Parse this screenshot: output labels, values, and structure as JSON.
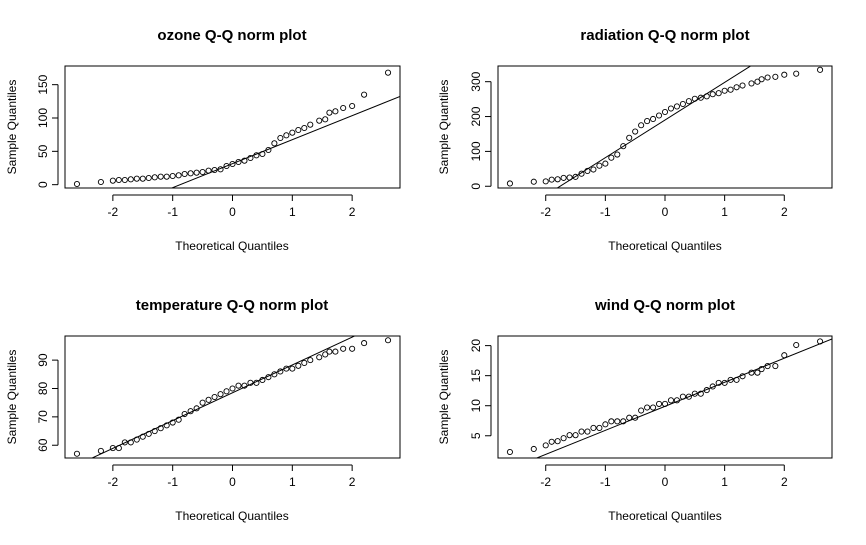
{
  "chart_data": [
    {
      "type": "scatter",
      "title": "ozone Q-Q norm plot",
      "xlabel": "Theoretical Quantiles",
      "ylabel": "Sample Quantiles",
      "xlim": [
        -2.8,
        2.8
      ],
      "ylim": [
        -5,
        178
      ],
      "xticks": [
        -2,
        -1,
        0,
        1,
        2
      ],
      "yticks": [
        0,
        50,
        100,
        150
      ],
      "line": {
        "intercept": 31.5,
        "slope": 36.0
      },
      "quantiles": [
        [
          -2.6,
          1
        ],
        [
          -2.2,
          4
        ],
        [
          -2.0,
          6
        ],
        [
          -1.9,
          7
        ],
        [
          -1.8,
          7
        ],
        [
          -1.7,
          8
        ],
        [
          -1.6,
          9
        ],
        [
          -1.5,
          9
        ],
        [
          -1.4,
          10
        ],
        [
          -1.3,
          11
        ],
        [
          -1.2,
          12
        ],
        [
          -1.1,
          12
        ],
        [
          -1.0,
          13
        ],
        [
          -0.9,
          14
        ],
        [
          -0.8,
          16
        ],
        [
          -0.7,
          17
        ],
        [
          -0.6,
          18
        ],
        [
          -0.5,
          19
        ],
        [
          -0.4,
          21
        ],
        [
          -0.3,
          22
        ],
        [
          -0.2,
          23
        ],
        [
          -0.1,
          28
        ],
        [
          0.0,
          31
        ],
        [
          0.1,
          34
        ],
        [
          0.2,
          36
        ],
        [
          0.3,
          40
        ],
        [
          0.4,
          44
        ],
        [
          0.5,
          46
        ],
        [
          0.6,
          52
        ],
        [
          0.7,
          62
        ],
        [
          0.8,
          70
        ],
        [
          0.9,
          74
        ],
        [
          1.0,
          78
        ],
        [
          1.1,
          82
        ],
        [
          1.2,
          85
        ],
        [
          1.3,
          90
        ],
        [
          1.45,
          96
        ],
        [
          1.55,
          98
        ],
        [
          1.62,
          108
        ],
        [
          1.72,
          110
        ],
        [
          1.85,
          115
        ],
        [
          2.0,
          118
        ],
        [
          2.2,
          135
        ],
        [
          2.6,
          168
        ]
      ]
    },
    {
      "type": "scatter",
      "title": "radiation Q-Q norm plot",
      "xlabel": "Theoretical Quantiles",
      "ylabel": "Sample Quantiles",
      "xlim": [
        -2.8,
        2.8
      ],
      "ylim": [
        -5,
        345
      ],
      "xticks": [
        -2,
        -1,
        0,
        1,
        2
      ],
      "yticks": [
        0,
        100,
        200,
        300
      ],
      "line": {
        "intercept": 190,
        "slope": 108
      },
      "quantiles": [
        [
          -2.6,
          8
        ],
        [
          -2.2,
          13
        ],
        [
          -2.0,
          14
        ],
        [
          -1.9,
          19
        ],
        [
          -1.8,
          20
        ],
        [
          -1.7,
          24
        ],
        [
          -1.6,
          25
        ],
        [
          -1.5,
          27
        ],
        [
          -1.4,
          36
        ],
        [
          -1.3,
          44
        ],
        [
          -1.2,
          48
        ],
        [
          -1.1,
          59
        ],
        [
          -1.0,
          65
        ],
        [
          -0.9,
          82
        ],
        [
          -0.8,
          91
        ],
        [
          -0.7,
          115
        ],
        [
          -0.6,
          139
        ],
        [
          -0.5,
          157
        ],
        [
          -0.4,
          175
        ],
        [
          -0.3,
          187
        ],
        [
          -0.2,
          193
        ],
        [
          -0.1,
          203
        ],
        [
          0.0,
          213
        ],
        [
          0.1,
          223
        ],
        [
          0.2,
          229
        ],
        [
          0.3,
          236
        ],
        [
          0.4,
          244
        ],
        [
          0.5,
          251
        ],
        [
          0.6,
          254
        ],
        [
          0.7,
          258
        ],
        [
          0.8,
          264
        ],
        [
          0.9,
          267
        ],
        [
          1.0,
          274
        ],
        [
          1.1,
          277
        ],
        [
          1.2,
          284
        ],
        [
          1.3,
          289
        ],
        [
          1.45,
          295
        ],
        [
          1.55,
          300
        ],
        [
          1.62,
          307
        ],
        [
          1.72,
          312
        ],
        [
          1.85,
          314
        ],
        [
          2.0,
          320
        ],
        [
          2.2,
          323
        ],
        [
          2.6,
          334
        ]
      ]
    },
    {
      "type": "scatter",
      "title": "temperature Q-Q norm plot",
      "xlabel": "Theoretical Quantiles",
      "ylabel": "Sample Quantiles",
      "xlim": [
        -2.8,
        2.8
      ],
      "ylim": [
        55.5,
        98.5
      ],
      "xticks": [
        -2,
        -1,
        0,
        1,
        2
      ],
      "yticks": [
        60,
        70,
        80,
        90
      ],
      "line": {
        "intercept": 78.5,
        "slope": 9.8
      },
      "quantiles": [
        [
          -2.6,
          57
        ],
        [
          -2.2,
          58
        ],
        [
          -2.0,
          59
        ],
        [
          -1.9,
          59
        ],
        [
          -1.8,
          61
        ],
        [
          -1.7,
          61
        ],
        [
          -1.6,
          62
        ],
        [
          -1.5,
          63
        ],
        [
          -1.4,
          64
        ],
        [
          -1.3,
          65
        ],
        [
          -1.2,
          66
        ],
        [
          -1.1,
          67
        ],
        [
          -1.0,
          68
        ],
        [
          -0.9,
          69
        ],
        [
          -0.8,
          71
        ],
        [
          -0.7,
          72
        ],
        [
          -0.6,
          73
        ],
        [
          -0.5,
          75
        ],
        [
          -0.4,
          76
        ],
        [
          -0.3,
          77
        ],
        [
          -0.2,
          78
        ],
        [
          -0.1,
          79
        ],
        [
          0.0,
          80
        ],
        [
          0.1,
          81
        ],
        [
          0.2,
          81
        ],
        [
          0.3,
          82
        ],
        [
          0.4,
          82
        ],
        [
          0.5,
          83
        ],
        [
          0.6,
          84
        ],
        [
          0.7,
          85
        ],
        [
          0.8,
          86
        ],
        [
          0.9,
          87
        ],
        [
          1.0,
          87
        ],
        [
          1.1,
          88
        ],
        [
          1.2,
          89
        ],
        [
          1.3,
          90
        ],
        [
          1.45,
          91
        ],
        [
          1.55,
          92
        ],
        [
          1.62,
          93
        ],
        [
          1.72,
          93
        ],
        [
          1.85,
          94
        ],
        [
          2.0,
          94
        ],
        [
          2.2,
          96
        ],
        [
          2.6,
          97
        ]
      ]
    },
    {
      "type": "scatter",
      "title": "wind Q-Q norm plot",
      "xlabel": "Theoretical Quantiles",
      "ylabel": "Sample Quantiles",
      "xlim": [
        -2.8,
        2.8
      ],
      "ylim": [
        1.3,
        21.6
      ],
      "xticks": [
        -2,
        -1,
        0,
        1,
        2
      ],
      "yticks": [
        5,
        10,
        15,
        20
      ],
      "line": {
        "intercept": 9.9,
        "slope": 4.0
      },
      "quantiles": [
        [
          -2.6,
          2.3
        ],
        [
          -2.2,
          2.8
        ],
        [
          -2.0,
          3.4
        ],
        [
          -1.9,
          4.0
        ],
        [
          -1.8,
          4.1
        ],
        [
          -1.7,
          4.6
        ],
        [
          -1.6,
          5.1
        ],
        [
          -1.5,
          5.1
        ],
        [
          -1.4,
          5.7
        ],
        [
          -1.3,
          5.7
        ],
        [
          -1.2,
          6.3
        ],
        [
          -1.1,
          6.3
        ],
        [
          -1.0,
          6.9
        ],
        [
          -0.9,
          7.4
        ],
        [
          -0.8,
          7.4
        ],
        [
          -0.7,
          7.4
        ],
        [
          -0.6,
          8.0
        ],
        [
          -0.5,
          8.0
        ],
        [
          -0.4,
          9.2
        ],
        [
          -0.3,
          9.7
        ],
        [
          -0.2,
          9.7
        ],
        [
          -0.1,
          10.3
        ],
        [
          0.0,
          10.3
        ],
        [
          0.1,
          10.9
        ],
        [
          0.2,
          10.9
        ],
        [
          0.3,
          11.5
        ],
        [
          0.4,
          11.5
        ],
        [
          0.5,
          12.0
        ],
        [
          0.6,
          12.0
        ],
        [
          0.7,
          12.6
        ],
        [
          0.8,
          13.2
        ],
        [
          0.9,
          13.8
        ],
        [
          1.0,
          13.8
        ],
        [
          1.1,
          14.3
        ],
        [
          1.2,
          14.3
        ],
        [
          1.3,
          14.9
        ],
        [
          1.45,
          15.5
        ],
        [
          1.55,
          15.5
        ],
        [
          1.62,
          16.1
        ],
        [
          1.72,
          16.6
        ],
        [
          1.85,
          16.6
        ],
        [
          2.0,
          18.4
        ],
        [
          2.2,
          20.1
        ],
        [
          2.6,
          20.7
        ]
      ]
    }
  ]
}
